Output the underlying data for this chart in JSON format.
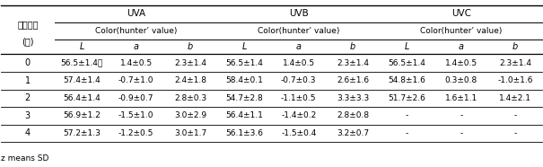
{
  "title_col_line1": "처리기간",
  "title_col_line2": "(주)",
  "uva_label": "UVA",
  "uvb_label": "UVB",
  "uvc_label": "UVC",
  "sub_label": "Color(hunter’ value)",
  "col_headers": [
    "L",
    "a",
    "b"
  ],
  "rows": [
    {
      "week": "0",
      "uva": [
        "56.5±1.4ᵺ",
        "1.4±0.5",
        "2.3±1.4"
      ],
      "uvb": [
        "56.5±1.4",
        "1.4±0.5",
        "2.3±1.4"
      ],
      "uvc": [
        "56.5±1.4",
        "1.4±0.5",
        "2.3±1.4"
      ]
    },
    {
      "week": "1",
      "uva": [
        "57.4±1.4",
        "-0.7±1.0",
        "2.4±1.8"
      ],
      "uvb": [
        "58.4±0.1",
        "-0.7±0.3",
        "2.6±1.6"
      ],
      "uvc": [
        "54.8±1.6",
        "0.3±0.8",
        "-1.0±1.6"
      ]
    },
    {
      "week": "2",
      "uva": [
        "56.4±1.4",
        "-0.9±0.7",
        "2.8±0.3"
      ],
      "uvb": [
        "54.7±2.8",
        "-1.1±0.5",
        "3.3±3.3"
      ],
      "uvc": [
        "51.7±2.6",
        "1.6±1.1",
        "1.4±2.1"
      ]
    },
    {
      "week": "3",
      "uva": [
        "56.9±1.2",
        "-1.5±1.0",
        "3.0±2.9"
      ],
      "uvb": [
        "56.4±1.1",
        "-1.4±0.2",
        "2.8±0.8"
      ],
      "uvc": [
        "-",
        "-",
        "-"
      ]
    },
    {
      "week": "4",
      "uva": [
        "57.2±1.3",
        "-1.2±0.5",
        "3.0±1.7"
      ],
      "uvb": [
        "56.1±3.6",
        "-1.5±0.4",
        "3.2±0.7"
      ],
      "uvc": [
        "-",
        "-",
        "-"
      ]
    }
  ],
  "footnote": "z means SD",
  "bg_color": "#ffffff",
  "text_color": "#000000",
  "line_color": "#000000",
  "fontsize": 7.0,
  "header_fontsize": 7.5
}
